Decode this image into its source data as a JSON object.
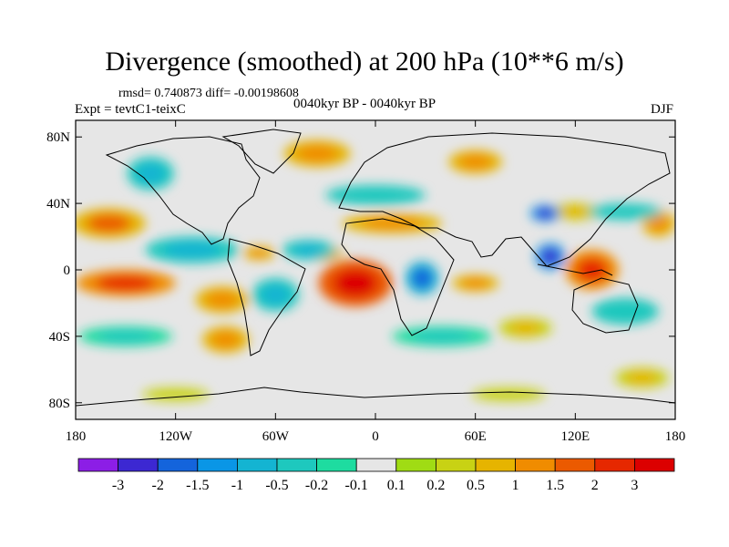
{
  "chart_data": {
    "type": "heatmap",
    "title": "Divergence (smoothed) at 200 hPa (10**6 m/s)",
    "stats_text": "rmsd= 0.740873 diff= -0.00198608",
    "left_label": "Expt = tevtC1-teixC",
    "center_label": "0040kyr BP - 0040kyr BP",
    "right_label": "DJF",
    "x_range": [
      -180,
      180
    ],
    "y_range": [
      -90,
      90
    ],
    "x_ticks": [
      {
        "value": -180,
        "label": "180"
      },
      {
        "value": -120,
        "label": "120W"
      },
      {
        "value": -60,
        "label": "60W"
      },
      {
        "value": 0,
        "label": "0"
      },
      {
        "value": 60,
        "label": "60E"
      },
      {
        "value": 120,
        "label": "120E"
      },
      {
        "value": 180,
        "label": "180"
      }
    ],
    "y_ticks": [
      {
        "value": 80,
        "label": "80N"
      },
      {
        "value": 40,
        "label": "40N"
      },
      {
        "value": 0,
        "label": "0"
      },
      {
        "value": -40,
        "label": "40S"
      },
      {
        "value": -80,
        "label": "80S"
      }
    ],
    "colorbar": {
      "levels": [
        "-3",
        "-2",
        "-1.5",
        "-1",
        "-0.5",
        "-0.2",
        "-0.1",
        "0.1",
        "0.2",
        "0.5",
        "1",
        "1.5",
        "2",
        "3"
      ],
      "colors": [
        "#8c1ee6",
        "#3c28d2",
        "#1464dc",
        "#0a96e6",
        "#14b4d2",
        "#1ec8be",
        "#1edca0",
        "#e6e6e6",
        "#a0dc14",
        "#c8d214",
        "#e6b400",
        "#f08c00",
        "#eb5a00",
        "#e62800",
        "#dc0000"
      ]
    },
    "features": [
      {
        "lon": -160,
        "lat": 28,
        "rx": 22,
        "ry": 9,
        "value": 1.6
      },
      {
        "lon": -150,
        "lat": -8,
        "rx": 30,
        "ry": 8,
        "value": 2.2
      },
      {
        "lon": -92,
        "lat": -18,
        "rx": 16,
        "ry": 8,
        "value": 1.2
      },
      {
        "lon": -12,
        "lat": -8,
        "rx": 22,
        "ry": 14,
        "value": 3.2
      },
      {
        "lon": -30,
        "lat": 10,
        "rx": 10,
        "ry": 5,
        "value": 1.4
      },
      {
        "lon": 10,
        "lat": 28,
        "rx": 30,
        "ry": 6,
        "value": 1.3
      },
      {
        "lon": 130,
        "lat": 0,
        "rx": 16,
        "ry": 12,
        "value": 2.6
      },
      {
        "lon": 60,
        "lat": -8,
        "rx": 14,
        "ry": 5,
        "value": 1.0
      },
      {
        "lon": -70,
        "lat": 10,
        "rx": 10,
        "ry": 4,
        "value": 1.2
      },
      {
        "lon": -35,
        "lat": 70,
        "rx": 20,
        "ry": 8,
        "value": 1.2
      },
      {
        "lon": 60,
        "lat": 65,
        "rx": 16,
        "ry": 7,
        "value": 1.2
      },
      {
        "lon": 120,
        "lat": 35,
        "rx": 18,
        "ry": 5,
        "value": 0.8
      },
      {
        "lon": 170,
        "lat": 28,
        "rx": 10,
        "ry": 8,
        "value": 1.2
      },
      {
        "lon": -135,
        "lat": 58,
        "rx": 14,
        "ry": 10,
        "value": -0.8
      },
      {
        "lon": -110,
        "lat": 12,
        "rx": 28,
        "ry": 8,
        "value": -0.6
      },
      {
        "lon": -40,
        "lat": 12,
        "rx": 16,
        "ry": 6,
        "value": -1.0
      },
      {
        "lon": -60,
        "lat": -15,
        "rx": 14,
        "ry": 10,
        "value": -0.8
      },
      {
        "lon": 28,
        "lat": -5,
        "rx": 10,
        "ry": 10,
        "value": -1.8
      },
      {
        "lon": 105,
        "lat": 8,
        "rx": 9,
        "ry": 8,
        "value": -2.8
      },
      {
        "lon": 102,
        "lat": 34,
        "rx": 9,
        "ry": 5,
        "value": -2.2
      },
      {
        "lon": 150,
        "lat": 35,
        "rx": 22,
        "ry": 5,
        "value": -0.5
      },
      {
        "lon": -150,
        "lat": -40,
        "rx": 28,
        "ry": 6,
        "value": -0.4
      },
      {
        "lon": 40,
        "lat": -40,
        "rx": 30,
        "ry": 6,
        "value": -0.4
      },
      {
        "lon": 0,
        "lat": 45,
        "rx": 30,
        "ry": 6,
        "value": -0.5
      },
      {
        "lon": 150,
        "lat": -25,
        "rx": 20,
        "ry": 8,
        "value": -0.5
      },
      {
        "lon": -90,
        "lat": -42,
        "rx": 14,
        "ry": 8,
        "value": 1.0
      },
      {
        "lon": 90,
        "lat": -35,
        "rx": 16,
        "ry": 6,
        "value": 0.7
      },
      {
        "lon": -120,
        "lat": -75,
        "rx": 20,
        "ry": 4,
        "value": 0.4
      },
      {
        "lon": 80,
        "lat": -75,
        "rx": 22,
        "ry": 4,
        "value": 0.4
      },
      {
        "lon": 160,
        "lat": -65,
        "rx": 16,
        "ry": 6,
        "value": 0.6
      }
    ]
  }
}
